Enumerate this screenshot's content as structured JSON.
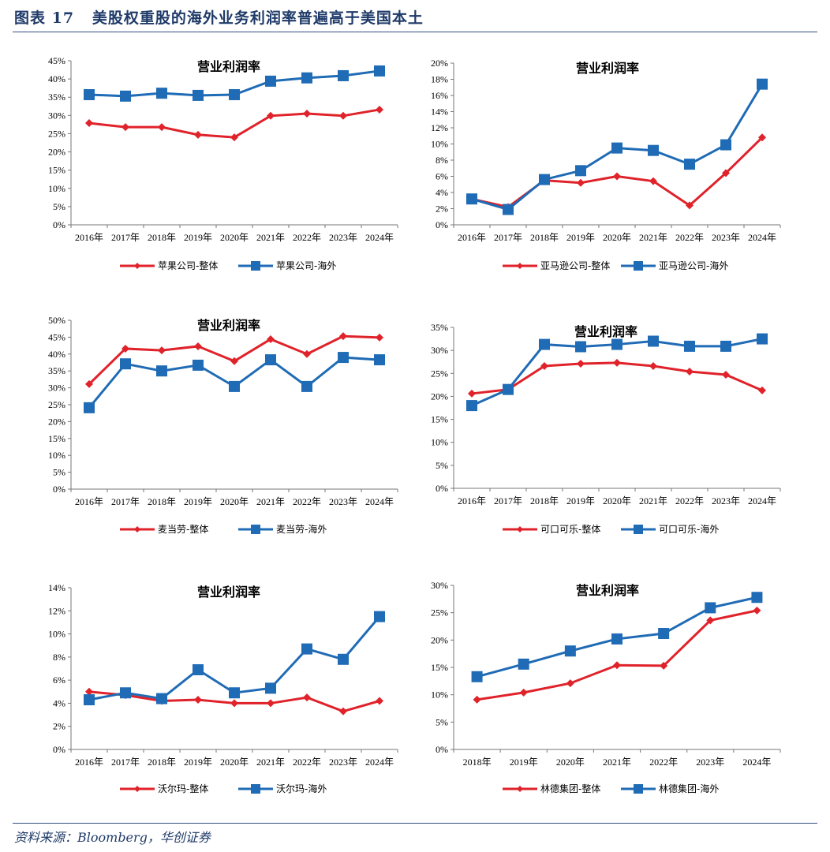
{
  "page": {
    "title": "图表 17   美股权重股的海外业务利润率普遍高于美国本土",
    "source": "资料来源：Bloomberg，华创证券"
  },
  "colors": {
    "overall": "#e0222a",
    "overseas": "#1f6bb5",
    "title": "#1f3a68"
  },
  "chart_data": [
    {
      "type": "line",
      "title": "营业利润率",
      "categories": [
        "2016年",
        "2017年",
        "2018年",
        "2019年",
        "2020年",
        "2021年",
        "2022年",
        "2023年",
        "2024年"
      ],
      "ylim": [
        0,
        45
      ],
      "ystep": 5,
      "yformat": "percent",
      "legend": "bottom",
      "series": [
        {
          "name": "苹果公司-整体",
          "values": [
            27.9,
            26.8,
            26.8,
            24.7,
            24.0,
            29.9,
            30.5,
            29.9,
            31.6
          ]
        },
        {
          "name": "苹果公司-海外",
          "values": [
            35.7,
            35.3,
            36.1,
            35.5,
            35.7,
            39.4,
            40.3,
            40.9,
            42.2
          ]
        }
      ]
    },
    {
      "type": "line",
      "title": "营业利润率",
      "categories": [
        "2016年",
        "2017年",
        "2018年",
        "2019年",
        "2020年",
        "2021年",
        "2022年",
        "2023年",
        "2024年"
      ],
      "ylim": [
        0,
        20
      ],
      "ystep": 2,
      "yformat": "percent",
      "legend": "bottom",
      "series": [
        {
          "name": "亚马逊公司-整体",
          "values": [
            3.2,
            2.2,
            5.5,
            5.2,
            6.0,
            5.4,
            2.4,
            6.4,
            10.8
          ]
        },
        {
          "name": "亚马逊公司-海外",
          "values": [
            3.2,
            1.9,
            5.6,
            6.7,
            9.5,
            9.2,
            7.5,
            9.9,
            17.4
          ]
        }
      ]
    },
    {
      "type": "line",
      "title": "营业利润率",
      "categories": [
        "2016年",
        "2017年",
        "2018年",
        "2019年",
        "2020年",
        "2021年",
        "2022年",
        "2023年",
        "2024年"
      ],
      "ylim": [
        0,
        50
      ],
      "ystep": 5,
      "yformat": "percent",
      "legend": "bottom",
      "series": [
        {
          "name": "麦当劳-整体",
          "values": [
            31.1,
            41.6,
            41.1,
            42.3,
            37.9,
            44.4,
            40.0,
            45.3,
            44.9
          ]
        },
        {
          "name": "麦当劳-海外",
          "values": [
            24.1,
            37.1,
            35.0,
            36.7,
            30.4,
            38.3,
            30.4,
            39.0,
            38.3
          ]
        }
      ]
    },
    {
      "type": "line",
      "title": "营业利润率",
      "categories": [
        "2016年",
        "2017年",
        "2018年",
        "2019年",
        "2020年",
        "2021年",
        "2022年",
        "2023年",
        "2024年"
      ],
      "ylim": [
        0,
        35
      ],
      "ystep": 5,
      "yformat": "percent",
      "legend": "bottom",
      "series": [
        {
          "name": "可口可乐-整体",
          "values": [
            20.6,
            21.5,
            26.6,
            27.1,
            27.3,
            26.6,
            25.4,
            24.7,
            21.3
          ]
        },
        {
          "name": "可口可乐-海外",
          "values": [
            18.0,
            21.5,
            31.3,
            30.8,
            31.3,
            32.0,
            30.9,
            30.9,
            32.5
          ]
        }
      ]
    },
    {
      "type": "line",
      "title": "营业利润率",
      "categories": [
        "2016年",
        "2017年",
        "2018年",
        "2019年",
        "2020年",
        "2021年",
        "2022年",
        "2023年",
        "2024年"
      ],
      "ylim": [
        0,
        14
      ],
      "ystep": 2,
      "yformat": "percent",
      "legend": "bottom",
      "series": [
        {
          "name": "沃尔玛-整体",
          "values": [
            5.0,
            4.7,
            4.2,
            4.3,
            4.0,
            4.0,
            4.5,
            3.3,
            4.2
          ]
        },
        {
          "name": "沃尔玛-海外",
          "values": [
            4.3,
            4.9,
            4.4,
            6.9,
            4.9,
            5.3,
            8.7,
            7.8,
            11.5
          ]
        }
      ]
    },
    {
      "type": "line",
      "title": "营业利润率",
      "categories": [
        "2018年",
        "2019年",
        "2020年",
        "2021年",
        "2022年",
        "2023年",
        "2024年"
      ],
      "ylim": [
        0,
        30
      ],
      "ystep": 5,
      "yformat": "percent",
      "legend": "bottom",
      "series": [
        {
          "name": "林德集团-整体",
          "values": [
            9.1,
            10.4,
            12.1,
            15.4,
            15.3,
            23.6,
            25.4
          ]
        },
        {
          "name": "林德集团-海外",
          "values": [
            13.3,
            15.6,
            18.0,
            20.2,
            21.2,
            25.9,
            27.8
          ]
        }
      ]
    }
  ]
}
